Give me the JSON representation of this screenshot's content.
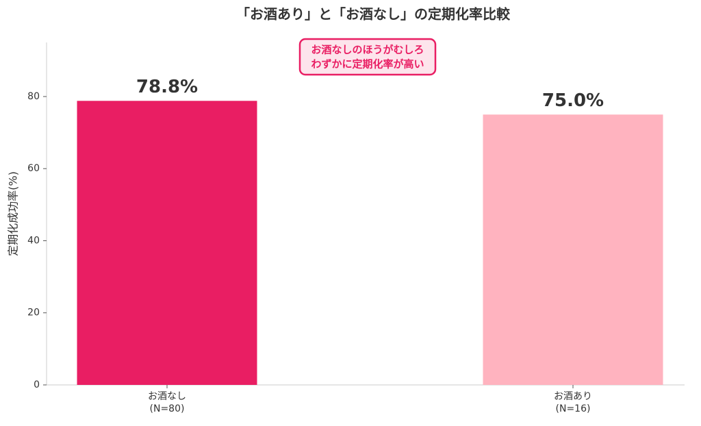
{
  "chart_data": {
    "type": "bar",
    "title": "「お酒あり」と「お酒なし」の定期化率比較",
    "y_label": "定期化成功率(%)",
    "categories": [
      [
        "お酒なし",
        "(N=80)"
      ],
      [
        "お酒あり",
        "(N=16)"
      ]
    ],
    "values": [
      78.8,
      75.0
    ],
    "value_labels": [
      "78.8%",
      "75.0%"
    ],
    "colors": [
      "#e91e63",
      "#ffb3bf"
    ],
    "annotation": [
      "お酒なしのほうがむしろ",
      "わずかに定期化率が高い"
    ],
    "ylim": [
      0,
      95
    ],
    "yticks": [
      0,
      20,
      40,
      60,
      80
    ],
    "grid": false
  }
}
